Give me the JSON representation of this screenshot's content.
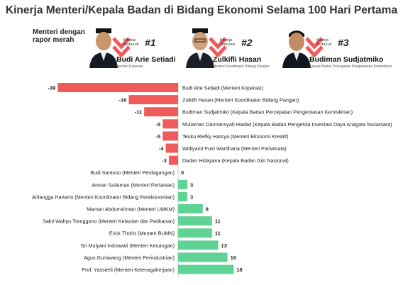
{
  "title": "Kinerja Menteri/Kepala Badan di Bidang Ekonomi Selama 100 Hari Pertama",
  "subtitle": "Menteri dengan rapor merah",
  "top3": [
    {
      "label": "Kinerja Terburuk",
      "rank": "#1",
      "name": "Budi Arie Setiadi",
      "role": "Menteri Koperasi"
    },
    {
      "label": "Kinerja Terburuk",
      "rank": "#2",
      "name": "Zulkifli Hasan",
      "role": "Menteri Koordinator Bidang Pangan"
    },
    {
      "label": "Kinerja Terburuk",
      "rank": "#3",
      "name": "Budiman Sudjatmiko",
      "role": "Kepala Badan Percepatan Pengentasan Kemiskinan"
    }
  ],
  "colors": {
    "negative": "#ef5b5b",
    "positive": "#5fd393",
    "text": "#222222",
    "axis": "#cccccc"
  },
  "chart_data": {
    "type": "bar",
    "orientation": "horizontal",
    "categories": [
      "Budi Arie Setiadi (Menteri Koperasi)",
      "Zulkifli Hasan (Menteri Koordinator Bidang Pangan)",
      "Budiman Sudjatmiko (Kepala Badan Percepatan Pengentasan Kemiskinan)",
      "Muliaman Darmansyah Hadad (Kepala Badan Pengelola Investasi Daya Anagata Nusantara)",
      "Teuku Riefky Harsya (Menteri Ekonomi Kreatif)",
      "Widiyanti Putri Wardhana (Menteri Pariwisata)",
      "Dadan Hidayana (Kepala Badan Gizi Nasional)",
      "Budi Santoso (Menteri Perdagangan)",
      "Amran Sulaiman (Menteri Pertanian)",
      "Airlangga Hartarto (Menteri Koordinator Bidang Perekonomian)",
      "Maman Abdurrahman (Menteri UMKM)",
      "Sakti Wahyu Trenggono (Menteri Kelautan dan Perikanan)",
      "Erick Thohir (Menteri BUMN)",
      "Sri Mulyani Indrawati (Menteri Keuangan)",
      "Agus Gumiwang (Menteri Perindustrian)",
      "Prof. Yassierli (Menteri Ketenagakerjaan)"
    ],
    "values": [
      -39,
      -16,
      -11,
      -5,
      -5,
      -4,
      -3,
      0,
      3,
      3,
      8,
      11,
      11,
      13,
      16,
      18
    ],
    "xlim": [
      -39,
      18
    ]
  }
}
